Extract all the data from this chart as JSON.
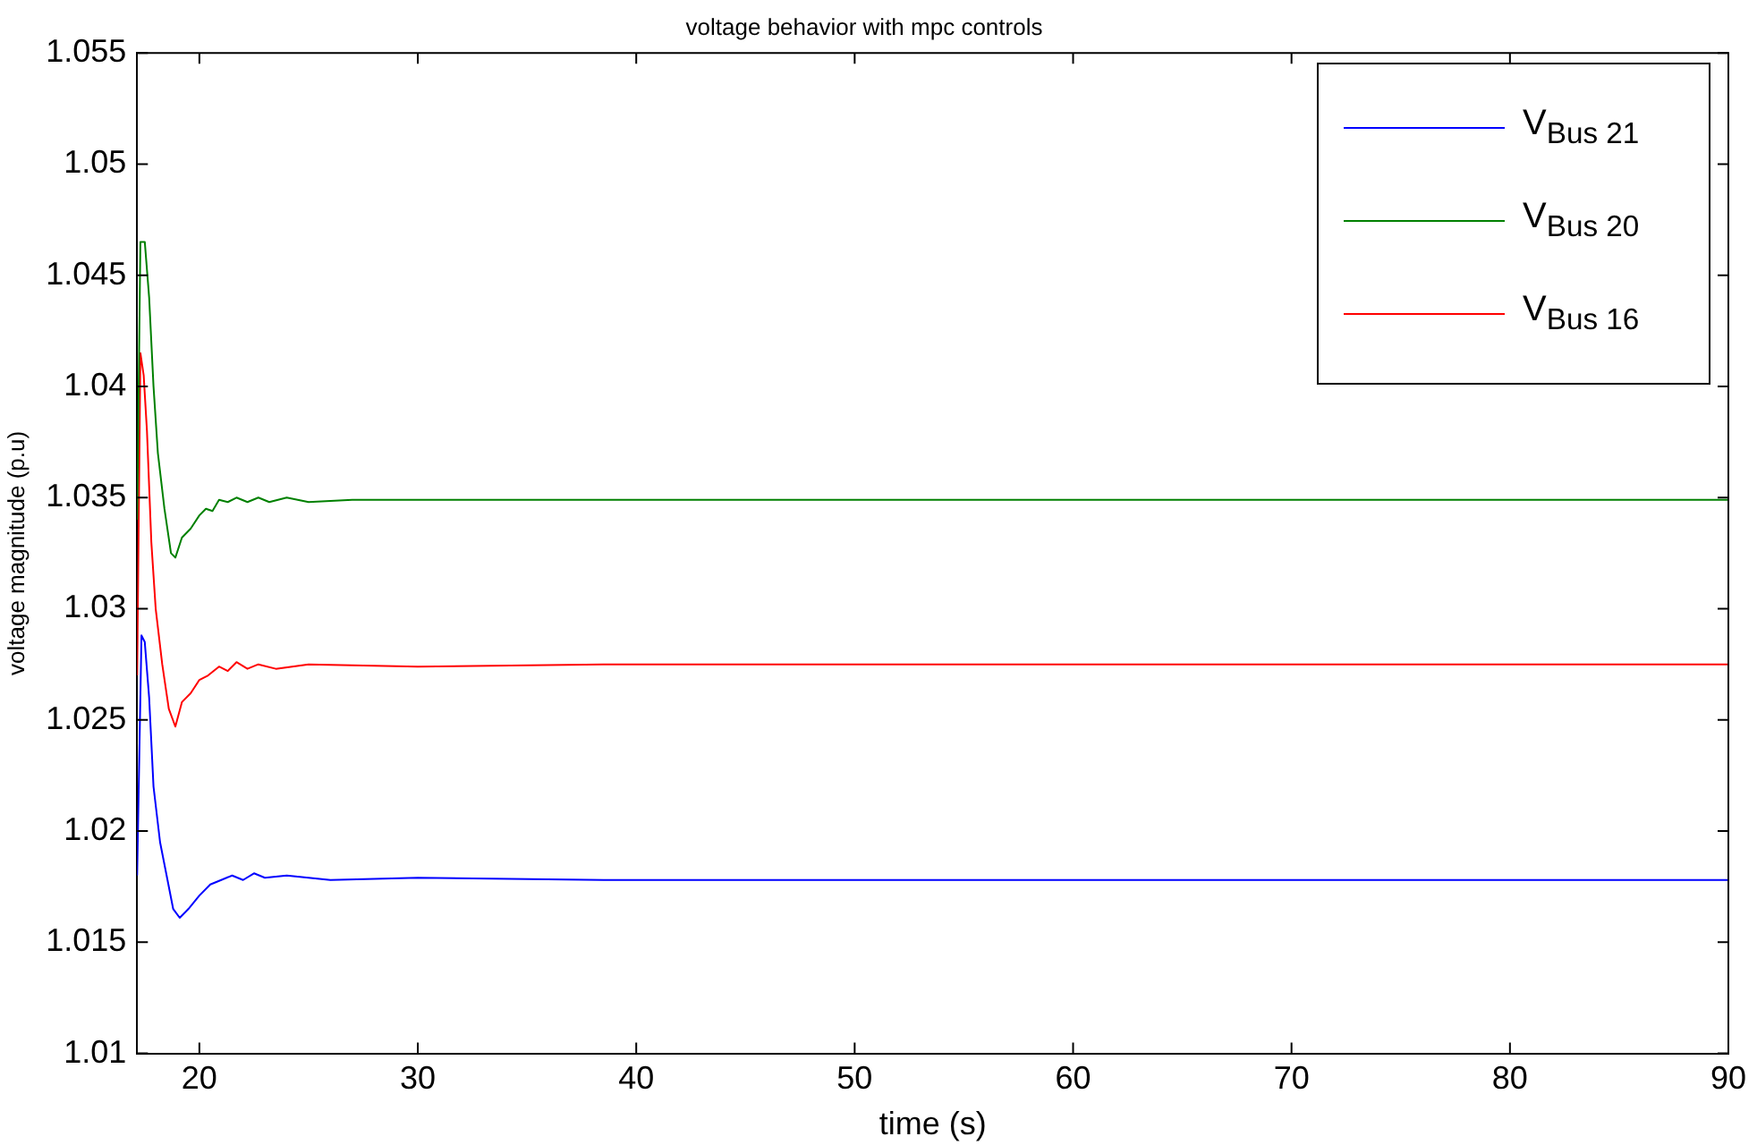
{
  "chart_data": {
    "type": "line",
    "title": "voltage behavior with mpc controls",
    "xlabel": "time (s)",
    "ylabel": "voltage magnitude (p.u)",
    "xlim": [
      17.15,
      90
    ],
    "xticks": [
      20,
      30,
      40,
      50,
      60,
      70,
      80,
      90
    ],
    "ylim": [
      1.01,
      1.055
    ],
    "yticks": [
      1.01,
      1.015,
      1.02,
      1.025,
      1.03,
      1.035,
      1.04,
      1.045,
      1.05,
      1.055
    ],
    "grid": false,
    "legend": "top right",
    "marker": "none",
    "line_style": "solid",
    "series": [
      {
        "name": "V$_{Bus 21}$",
        "color": "#0000ff",
        "x": [
          17.15,
          17.35,
          17.5,
          17.7,
          17.9,
          18.2,
          18.5,
          18.8,
          19.1,
          19.5,
          20,
          20.5,
          21,
          21.5,
          22,
          22.5,
          23,
          24,
          26,
          30,
          38.5,
          90
        ],
        "values": [
          1.018,
          1.0288,
          1.0285,
          1.026,
          1.022,
          1.0195,
          1.018,
          1.0165,
          1.0161,
          1.0165,
          1.0171,
          1.0176,
          1.0178,
          1.018,
          1.0178,
          1.0181,
          1.0179,
          1.018,
          1.0178,
          1.0179,
          1.0178,
          1.0178
        ]
      },
      {
        "name": "V$_{Bus 20}$",
        "color": "#008000",
        "x": [
          17.15,
          17.3,
          17.5,
          17.7,
          17.9,
          18.1,
          18.4,
          18.7,
          18.9,
          19.2,
          19.6,
          20,
          20.3,
          20.6,
          20.9,
          21.3,
          21.7,
          22.2,
          22.7,
          23.2,
          24,
          25,
          27,
          30,
          35,
          38.5,
          90
        ],
        "values": [
          1.034,
          1.0465,
          1.0465,
          1.044,
          1.04,
          1.037,
          1.0345,
          1.0325,
          1.0323,
          1.0332,
          1.0336,
          1.0342,
          1.0345,
          1.0344,
          1.0349,
          1.0348,
          1.035,
          1.0348,
          1.035,
          1.0348,
          1.035,
          1.0348,
          1.0349,
          1.0349,
          1.0349,
          1.0349,
          1.0349
        ]
      },
      {
        "name": "V$_{Bus 16}$",
        "color": "#ff0000",
        "x": [
          17.15,
          17.3,
          17.45,
          17.6,
          17.8,
          18,
          18.3,
          18.6,
          18.9,
          19.2,
          19.6,
          20,
          20.4,
          20.9,
          21.3,
          21.7,
          22.2,
          22.7,
          23.5,
          25,
          30,
          38.5,
          90
        ],
        "values": [
          1.027,
          1.0415,
          1.0405,
          1.038,
          1.033,
          1.03,
          1.0275,
          1.0255,
          1.0247,
          1.0258,
          1.0262,
          1.0268,
          1.027,
          1.0274,
          1.0272,
          1.0276,
          1.0273,
          1.0275,
          1.0273,
          1.0275,
          1.0274,
          1.0275,
          1.0275
        ]
      }
    ]
  }
}
